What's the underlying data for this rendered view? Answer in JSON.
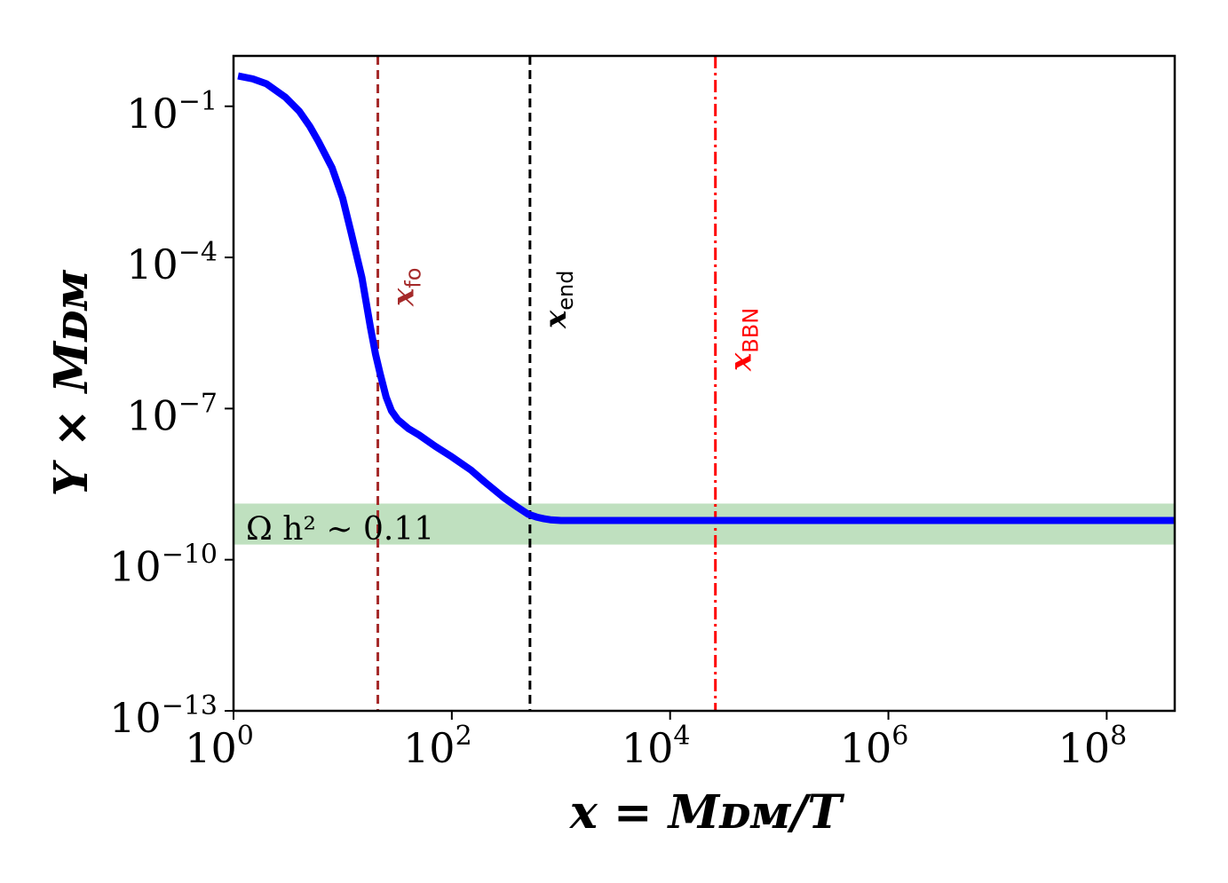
{
  "chart_data": {
    "type": "line",
    "title": "",
    "xlabel": "x = M_{DM}/T",
    "ylabel": "Y × M_{DM}",
    "x_scale": "log",
    "y_scale": "log",
    "xlim": [
      1,
      420000000.0
    ],
    "ylim": [
      1e-13,
      1
    ],
    "x_ticks": [
      {
        "value": 1,
        "base": "10",
        "exp": "0"
      },
      {
        "value": 100,
        "base": "10",
        "exp": "2"
      },
      {
        "value": 10000,
        "base": "10",
        "exp": "4"
      },
      {
        "value": 1000000,
        "base": "10",
        "exp": "6"
      },
      {
        "value": 100000000,
        "base": "10",
        "exp": "8"
      }
    ],
    "y_ticks": [
      {
        "value": 0.1,
        "base": "10",
        "exp": "−1"
      },
      {
        "value": 0.0001,
        "base": "10",
        "exp": "−4"
      },
      {
        "value": 1e-07,
        "base": "10",
        "exp": "−7"
      },
      {
        "value": 1e-10,
        "base": "10",
        "exp": "−10"
      },
      {
        "value": 1e-13,
        "base": "10",
        "exp": "−13"
      }
    ],
    "grid": false,
    "series": [
      {
        "color": "#0000ff",
        "x": [
          1.1,
          1.5,
          2,
          3,
          4,
          5,
          6,
          8,
          10,
          12,
          15,
          18,
          20,
          22,
          25,
          28,
          32,
          40,
          50,
          70,
          100,
          150,
          200,
          300,
          400,
          500,
          600,
          700,
          800,
          1000,
          10000,
          100000,
          1000000,
          10000000,
          100000000,
          420000000
        ],
        "y": [
          0.4,
          0.35,
          0.28,
          0.15,
          0.08,
          0.04,
          0.02,
          0.006,
          0.0015,
          0.0003,
          4e-05,
          4e-06,
          1.2e-06,
          5e-07,
          1.7e-07,
          9e-08,
          6e-08,
          4e-08,
          3e-08,
          1.8e-08,
          1.1e-08,
          6e-09,
          3.5e-09,
          1.7e-09,
          1.1e-09,
          8e-10,
          7e-10,
          6.5e-10,
          6.2e-10,
          6e-10,
          6e-10,
          6e-10,
          6e-10,
          6e-10,
          6e-10,
          6e-10
        ]
      }
    ],
    "band": {
      "label": "Ω h² ∼ 0.11",
      "y_low": 2e-10,
      "y_high": 1.3e-09,
      "color": "#bfe0bf"
    },
    "vlines": [
      {
        "x": 21,
        "label": "x",
        "sub": "fo",
        "color": "#a52a2a",
        "style": "dashed"
      },
      {
        "x": 520,
        "label": "x",
        "sub": "end",
        "color": "#000000",
        "style": "dashed"
      },
      {
        "x": 26000,
        "label": "x",
        "sub": "BBN",
        "color": "#ff0000",
        "style": "dashdot"
      }
    ]
  }
}
